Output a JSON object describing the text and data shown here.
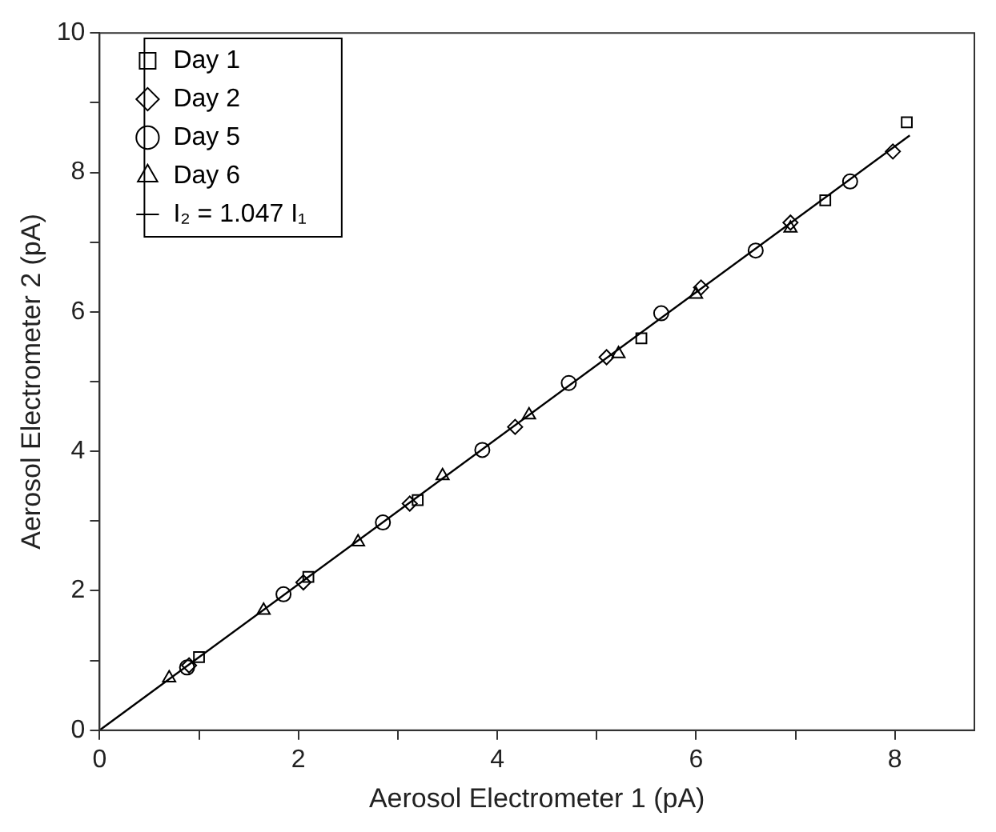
{
  "chart_data": {
    "type": "scatter",
    "xlabel": "Aerosol Electrometer 1 (pA)",
    "ylabel": "Aerosol Electrometer 2 (pA)",
    "xlim": [
      0,
      8.8
    ],
    "ylim": [
      0,
      10
    ],
    "xticks": [
      0,
      {
        "value": 1,
        "label": null
      },
      2,
      {
        "value": 3,
        "label": null
      },
      4,
      {
        "value": 5,
        "label": null
      },
      6,
      {
        "value": 7,
        "label": null
      },
      8
    ],
    "yticks": [
      0,
      {
        "value": 1,
        "label": null
      },
      2,
      {
        "value": 3,
        "label": null
      },
      4,
      {
        "value": 5,
        "label": null
      },
      6,
      {
        "value": 7,
        "label": null
      },
      8,
      {
        "value": 9,
        "label": null
      },
      10
    ],
    "grid": false,
    "legend": "top left",
    "series": [
      {
        "name": "Day 1",
        "color": "#000000",
        "marker": "square",
        "x": [
          1.0,
          2.1,
          3.2,
          5.45,
          7.3,
          8.12
        ],
        "values": [
          1.05,
          2.2,
          3.3,
          5.62,
          7.6,
          8.72
        ]
      },
      {
        "name": "Day 2",
        "color": "#000000",
        "marker": "diamond",
        "x": [
          0.9,
          2.05,
          3.12,
          4.18,
          5.1,
          6.05,
          6.95,
          7.98
        ],
        "values": [
          0.93,
          2.12,
          3.25,
          4.35,
          5.35,
          6.35,
          7.28,
          8.3
        ]
      },
      {
        "name": "Day 5",
        "color": "#000000",
        "marker": "circle",
        "x": [
          0.88,
          1.85,
          2.85,
          3.85,
          4.72,
          5.65,
          6.6,
          7.55
        ],
        "values": [
          0.9,
          1.95,
          2.98,
          4.02,
          4.98,
          5.98,
          6.88,
          7.87
        ]
      },
      {
        "name": "Day 6",
        "color": "#000000",
        "marker": "triangle",
        "x": [
          0.7,
          1.65,
          2.6,
          3.45,
          4.32,
          5.22,
          6.0,
          6.95
        ],
        "values": [
          0.75,
          1.72,
          2.7,
          3.65,
          4.52,
          5.4,
          6.25,
          7.2
        ]
      },
      {
        "name": "I₂ = 1.047 I₁",
        "type": "line",
        "color": "#000000",
        "marker": "none",
        "line_style": "solid",
        "x": [
          0,
          8.15
        ],
        "values": [
          0,
          8.53
        ]
      }
    ]
  }
}
